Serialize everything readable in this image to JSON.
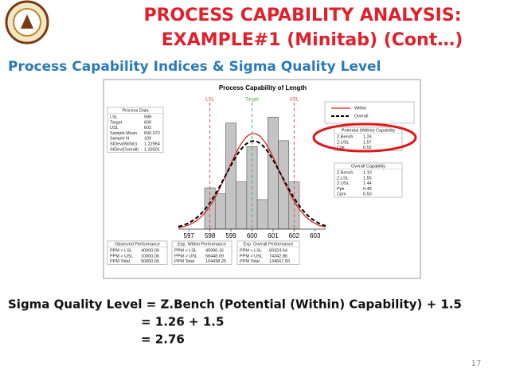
{
  "header": {
    "title_line1": "PROCESS CAPABILITY ANALYSIS:",
    "title_line2": "EXAMPLE#1 (Minitab) (Cont…)",
    "subtitle": "Process Capability Indices & Sigma Quality Level"
  },
  "chart_data": {
    "type": "histogram",
    "title": "Process Capability of Length",
    "bins": [
      597.75,
      598.25,
      598.75,
      599.25,
      599.75,
      600.25,
      600.75,
      601.25,
      601.75,
      602.25
    ],
    "counts": [
      7,
      6,
      18,
      8,
      14,
      5,
      19,
      15,
      8
    ],
    "color": "#c4c4c4",
    "xlim": [
      596.5,
      603.5
    ],
    "xticks": [
      597,
      598,
      599,
      600,
      601,
      602,
      603
    ],
    "ylim": [
      0,
      22
    ],
    "spec_lines": [
      {
        "label": "LSL",
        "value": 598,
        "color": "#e04040"
      },
      {
        "label": "Target",
        "value": 600,
        "color": "#40a840"
      },
      {
        "label": "USL",
        "value": 602,
        "color": "#e04040"
      }
    ],
    "series": [
      {
        "name": "Within",
        "color": "#e02020",
        "mean": 600.072,
        "sd": 1.22964,
        "dashed": false
      },
      {
        "name": "Overall",
        "color": "#000000",
        "mean": 600.072,
        "sd": 1.33501,
        "dashed": true
      }
    ]
  },
  "process_data": {
    "heading": "Process Data",
    "rows": [
      [
        "LSL",
        "598"
      ],
      [
        "Target",
        "600"
      ],
      [
        "USL",
        "602"
      ],
      [
        "Sample Mean",
        "600.072"
      ],
      [
        "Sample N",
        "100"
      ],
      [
        "StDev(Within)",
        "1.22964"
      ],
      [
        "StDev(Overall)",
        "1.33501"
      ]
    ]
  },
  "potential_capability": {
    "heading": "Potential (Within) Capability",
    "rows": [
      [
        "Z.Bench",
        "1.26"
      ],
      [
        "Z.USL",
        "1.57"
      ],
      [
        "Cpk",
        "0.52"
      ]
    ]
  },
  "overall_capability": {
    "heading": "Overall Capability",
    "rows": [
      [
        "Z.Bench",
        "1.10"
      ],
      [
        "Z.LSL",
        "1.55"
      ],
      [
        "Z.USL",
        "1.44"
      ],
      [
        "Ppk",
        "0.48"
      ],
      [
        "Cpm",
        "0.50"
      ]
    ]
  },
  "observed_performance": {
    "heading": "Observed Performance",
    "rows": [
      [
        "PPM < LSL",
        "40000.00"
      ],
      [
        "PPM > USL",
        "10000.00"
      ],
      [
        "PPM Total",
        "50000.00"
      ]
    ]
  },
  "exp_within_performance": {
    "heading": "Exp. Within Performance",
    "rows": [
      [
        "PPM < LSL",
        "45990.16"
      ],
      [
        "PPM > USL",
        "58448.09"
      ],
      [
        "PPM Total",
        "104438.25"
      ]
    ]
  },
  "exp_overall_performance": {
    "heading": "Exp. Overall Performance",
    "rows": [
      [
        "PPM < LSL",
        "60324.64"
      ],
      [
        "PPM > USL",
        "74342.86"
      ],
      [
        "PPM Total",
        "134667.50"
      ]
    ]
  },
  "formula": {
    "line1": "Sigma Quality Level = Z.Bench (Potential (Within) Capability) + 1.5",
    "line2": "= 1.26 + 1.5",
    "line3": "= 2.76"
  },
  "page_number": "17"
}
